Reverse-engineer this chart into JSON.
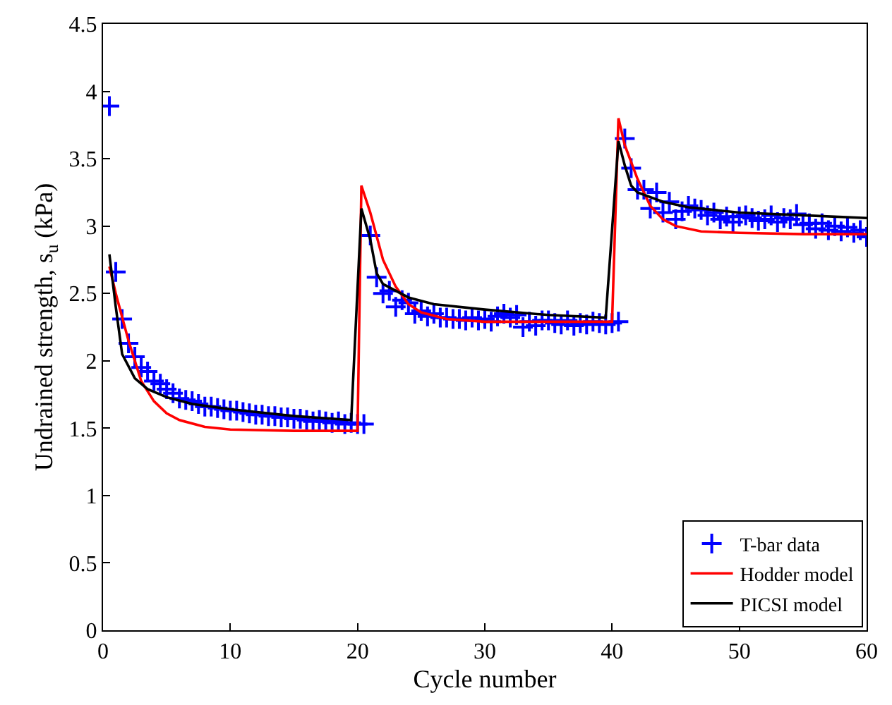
{
  "chart_data": {
    "type": "scatter",
    "xlabel": "Cycle number",
    "ylabel": "Undrained strength, s$_{u}$ (kPa)",
    "xlim": [
      0,
      60
    ],
    "xticks": [
      0,
      10,
      20,
      30,
      40,
      50,
      60
    ],
    "ylim": [
      0,
      4.5
    ],
    "yticks": [
      0,
      0.5,
      1,
      1.5,
      2,
      2.5,
      3,
      3.5,
      4,
      4.5
    ],
    "legend": "bottom right",
    "series": [
      {
        "name": "T-bar data",
        "marker": "cross",
        "color": "#0000ff",
        "x": [
          0.5,
          1,
          1.5,
          2,
          2.5,
          3,
          3.5,
          4,
          4.5,
          5,
          5.5,
          6,
          6.5,
          7,
          7.5,
          8,
          8.5,
          9,
          9.5,
          10,
          10.5,
          11,
          11.5,
          12,
          12.5,
          13,
          13.5,
          14,
          14.5,
          15,
          15.5,
          16,
          16.5,
          17,
          17.5,
          18,
          18.5,
          19,
          19.5,
          20,
          20.5,
          21,
          21.5,
          22,
          22.5,
          23,
          23.5,
          24,
          24.5,
          25,
          25.5,
          26,
          26.5,
          27,
          27.5,
          28,
          28.5,
          29,
          29.5,
          30,
          30.5,
          31,
          31.5,
          32,
          32.5,
          33,
          33.5,
          34,
          34.5,
          35,
          35.5,
          36,
          36.5,
          37,
          37.5,
          38,
          38.5,
          39,
          39.5,
          40,
          40.5,
          41,
          41.5,
          42,
          42.5,
          43,
          43.5,
          44,
          44.5,
          45,
          45.5,
          46,
          46.5,
          47,
          47.5,
          48,
          48.5,
          49,
          49.5,
          50,
          50.5,
          51,
          51.5,
          52,
          52.5,
          53,
          53.5,
          54,
          54.5,
          55,
          55.5,
          56,
          56.5,
          57,
          57.5,
          58,
          58.5,
          59,
          59.5,
          60
        ],
        "values": [
          3.89,
          2.66,
          2.31,
          2.13,
          2.03,
          1.95,
          1.92,
          1.85,
          1.83,
          1.79,
          1.76,
          1.72,
          1.71,
          1.7,
          1.68,
          1.66,
          1.66,
          1.65,
          1.64,
          1.63,
          1.63,
          1.62,
          1.61,
          1.6,
          1.6,
          1.59,
          1.59,
          1.58,
          1.58,
          1.57,
          1.57,
          1.56,
          1.55,
          1.56,
          1.55,
          1.54,
          1.55,
          1.53,
          1.54,
          1.53,
          1.53,
          2.93,
          2.62,
          2.5,
          2.52,
          2.4,
          2.45,
          2.43,
          2.35,
          2.37,
          2.33,
          2.35,
          2.32,
          2.32,
          2.31,
          2.31,
          2.3,
          2.32,
          2.3,
          2.31,
          2.29,
          2.33,
          2.35,
          2.32,
          2.34,
          2.25,
          2.29,
          2.26,
          2.3,
          2.3,
          2.28,
          2.27,
          2.3,
          2.26,
          2.28,
          2.27,
          2.29,
          2.28,
          2.27,
          2.28,
          2.29,
          3.65,
          3.43,
          3.27,
          3.27,
          3.13,
          3.25,
          3.1,
          3.18,
          3.05,
          3.11,
          3.15,
          3.13,
          3.12,
          3.08,
          3.1,
          3.05,
          3.07,
          3.03,
          3.07,
          3.08,
          3.06,
          3.04,
          3.05,
          3.08,
          3.03,
          3.06,
          3.05,
          3.09,
          3.01,
          3.02,
          2.98,
          3.02,
          2.97,
          3.0,
          2.96,
          2.99,
          2.95,
          2.97,
          2.92
        ]
      },
      {
        "name": "Hodder model",
        "type": "line",
        "color": "#ff0000",
        "x": [
          0.5,
          1,
          2,
          3,
          4,
          5,
          6,
          8,
          10,
          15,
          20,
          20.3,
          21,
          22,
          23,
          24,
          25,
          27,
          30,
          35,
          40,
          40.5,
          41,
          42,
          43,
          44,
          45,
          47,
          50,
          55,
          60
        ],
        "values": [
          2.7,
          2.5,
          2.15,
          1.85,
          1.7,
          1.61,
          1.56,
          1.51,
          1.49,
          1.48,
          1.48,
          3.3,
          3.1,
          2.75,
          2.55,
          2.42,
          2.36,
          2.31,
          2.29,
          2.29,
          2.29,
          3.8,
          3.6,
          3.35,
          3.15,
          3.05,
          3.0,
          2.96,
          2.95,
          2.94,
          2.94
        ]
      },
      {
        "name": "PICSI model",
        "type": "line",
        "color": "#000000",
        "x": [
          0.5,
          1,
          1.5,
          2.5,
          3.5,
          5,
          7,
          10,
          15,
          19.5,
          20.3,
          21,
          21.5,
          22,
          24,
          26,
          30,
          35,
          39.5,
          40.5,
          41,
          41.5,
          42,
          44,
          46,
          50,
          55,
          60
        ],
        "values": [
          2.79,
          2.4,
          2.05,
          1.87,
          1.79,
          1.73,
          1.68,
          1.64,
          1.59,
          1.56,
          3.13,
          2.9,
          2.65,
          2.57,
          2.47,
          2.42,
          2.38,
          2.34,
          2.32,
          3.63,
          3.45,
          3.3,
          3.25,
          3.18,
          3.14,
          3.1,
          3.08,
          3.06
        ]
      }
    ]
  }
}
